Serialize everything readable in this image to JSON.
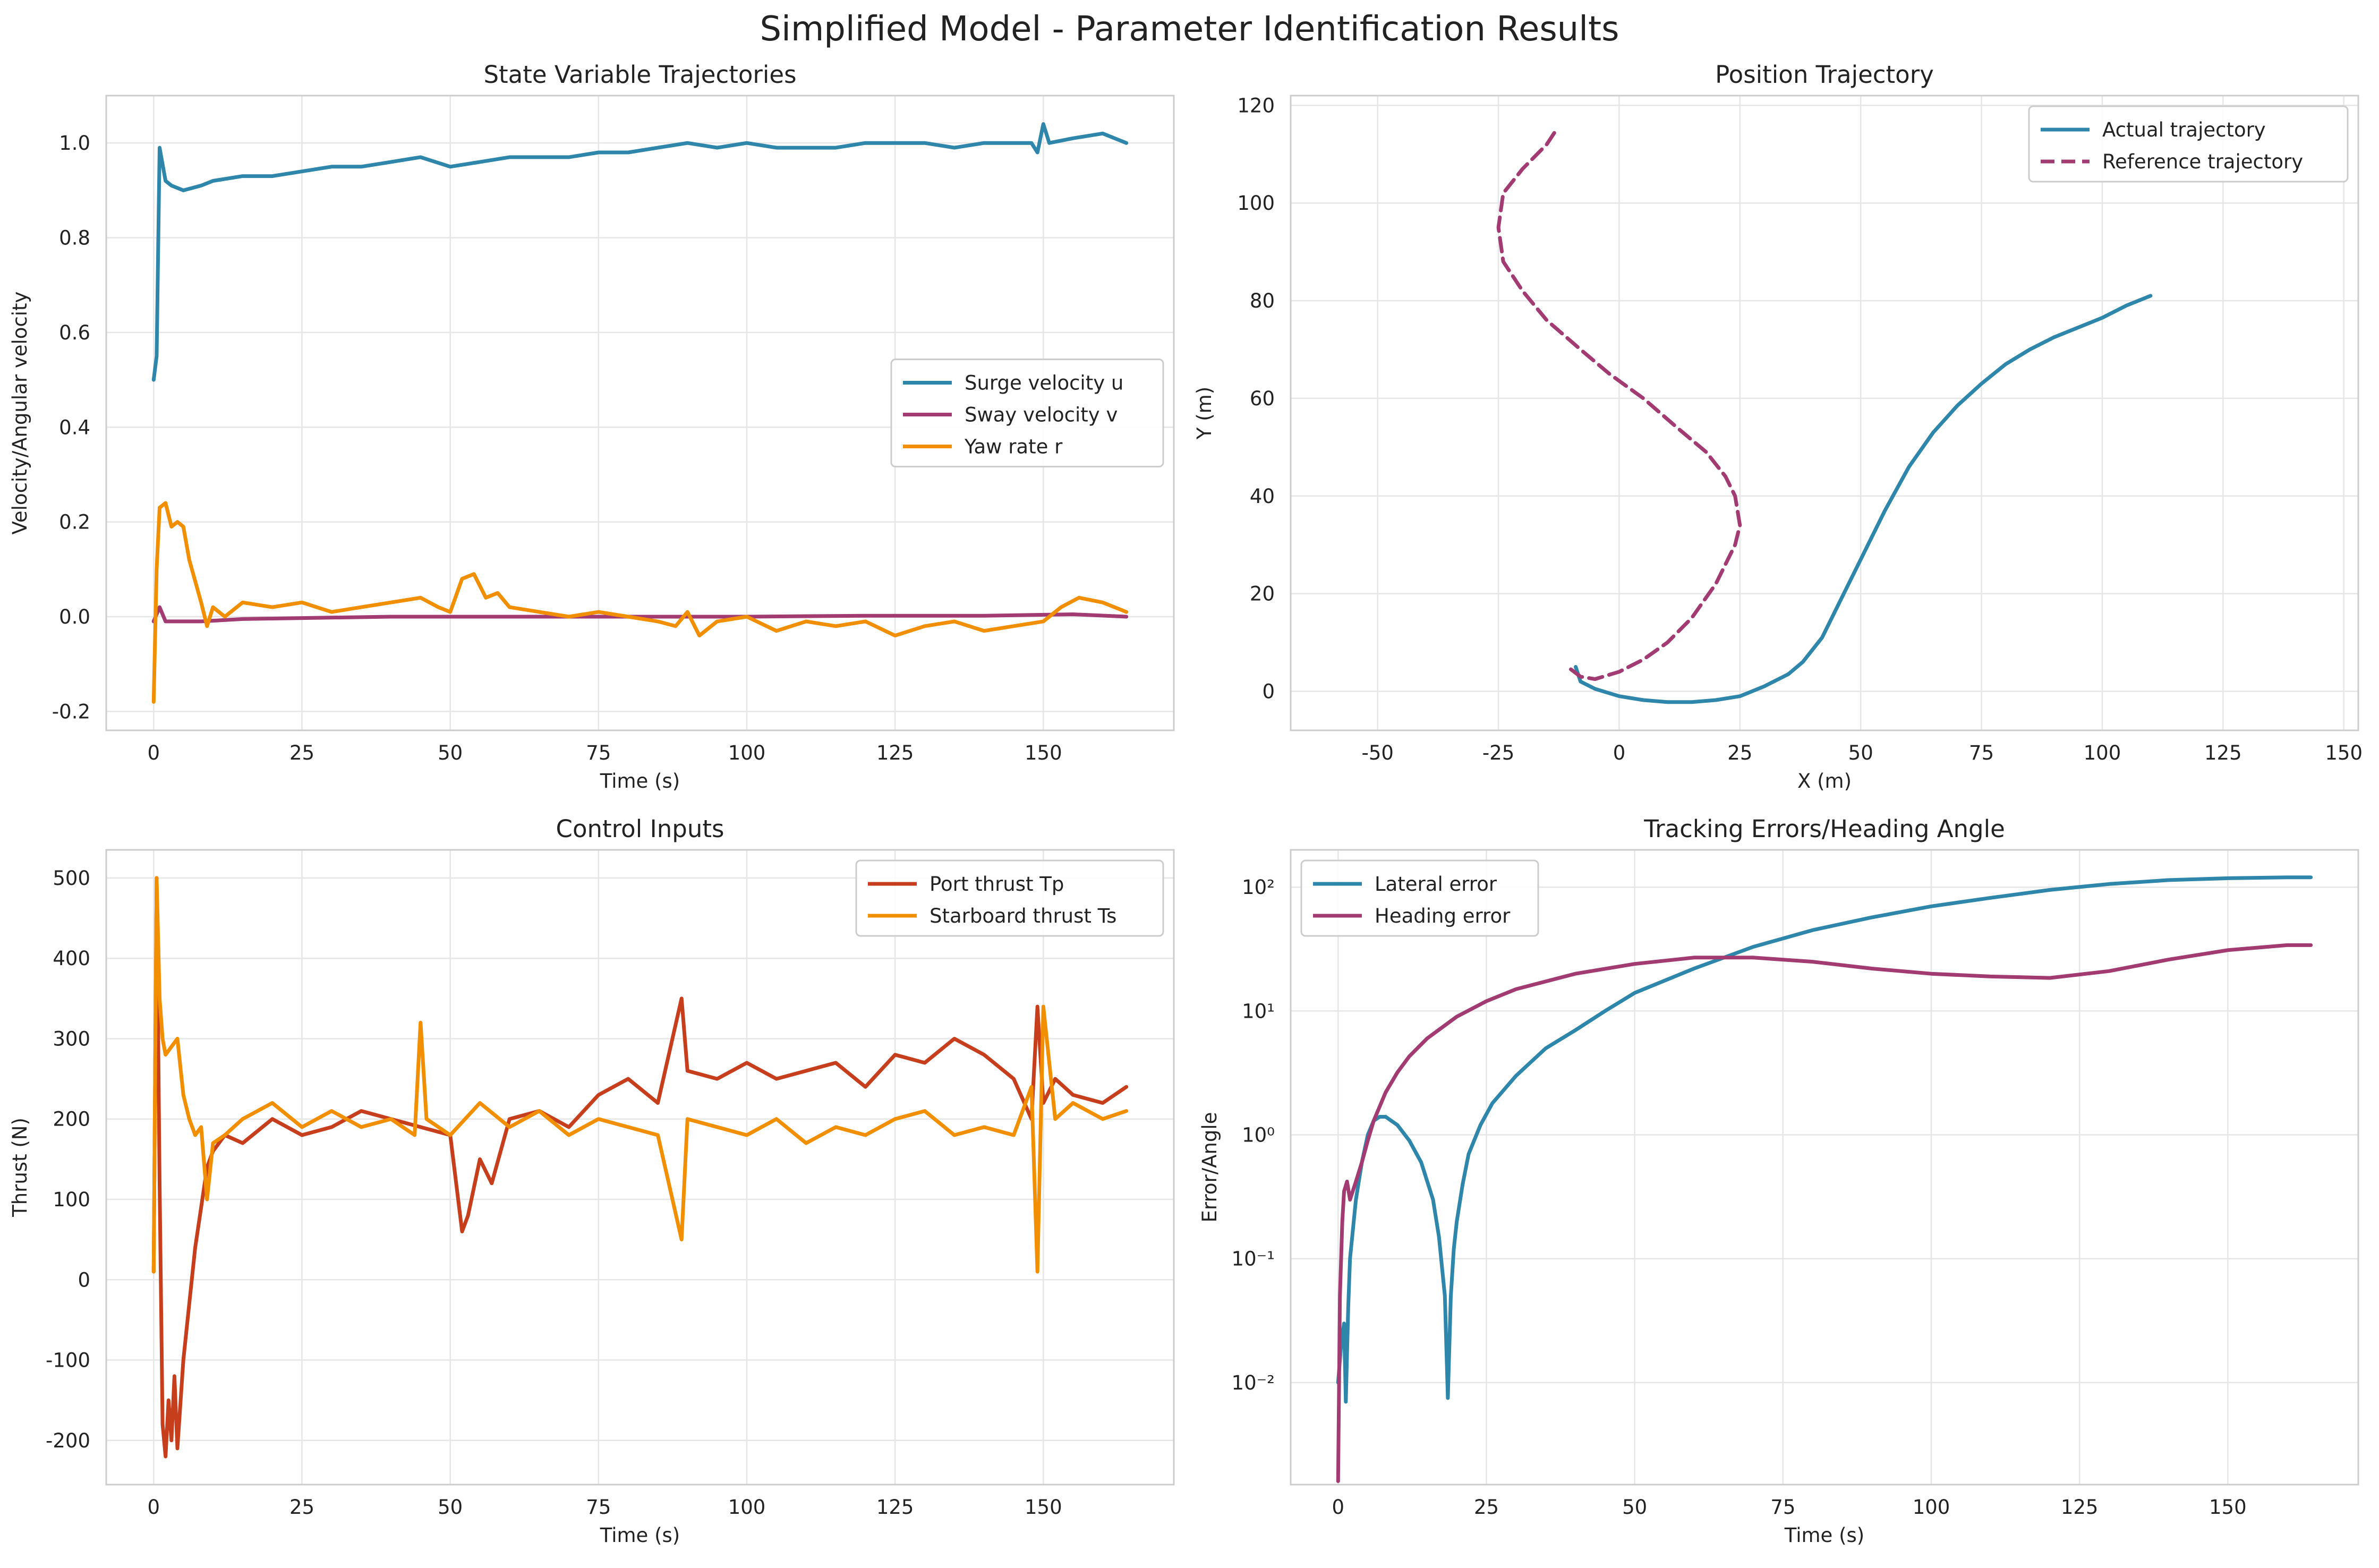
{
  "figure": {
    "suptitle": "Simplified Model - Parameter Identification Results"
  },
  "chart_data": [
    {
      "id": "states",
      "type": "line",
      "title": "State Variable Trajectories",
      "xlabel": "Time (s)",
      "ylabel": "Velocity/Angular velocity",
      "xlim": [
        -8,
        172
      ],
      "ylim": [
        -0.24,
        1.1
      ],
      "xticks": [
        0,
        25,
        50,
        75,
        100,
        125,
        150
      ],
      "yticks": [
        -0.2,
        0.0,
        0.2,
        0.4,
        0.6,
        0.8,
        1.0
      ],
      "ytick_labels": [
        "-0.2",
        "0.0",
        "0.2",
        "0.4",
        "0.6",
        "0.8",
        "1.0"
      ],
      "grid": true,
      "legend": "center-right",
      "series": [
        {
          "name": "Surge velocity u",
          "color": "#2E86AB",
          "x": [
            0,
            0.5,
            1,
            2,
            3,
            5,
            8,
            10,
            15,
            20,
            25,
            30,
            35,
            40,
            45,
            50,
            55,
            60,
            65,
            70,
            75,
            80,
            85,
            90,
            95,
            100,
            105,
            110,
            115,
            120,
            125,
            130,
            135,
            140,
            145,
            148,
            149,
            150,
            151,
            155,
            160,
            164
          ],
          "y": [
            0.5,
            0.55,
            0.99,
            0.92,
            0.91,
            0.9,
            0.91,
            0.92,
            0.93,
            0.93,
            0.94,
            0.95,
            0.95,
            0.96,
            0.97,
            0.95,
            0.96,
            0.97,
            0.97,
            0.97,
            0.98,
            0.98,
            0.99,
            1.0,
            0.99,
            1.0,
            0.99,
            0.99,
            0.99,
            1.0,
            1.0,
            1.0,
            0.99,
            1.0,
            1.0,
            1.0,
            0.98,
            1.04,
            1.0,
            1.01,
            1.02,
            1.0
          ]
        },
        {
          "name": "Sway velocity v",
          "color": "#A23B72",
          "x": [
            0,
            1,
            2,
            4,
            8,
            15,
            25,
            40,
            60,
            80,
            100,
            120,
            140,
            155,
            164
          ],
          "y": [
            -0.01,
            0.02,
            -0.01,
            -0.01,
            -0.01,
            -0.005,
            -0.003,
            0.0,
            0.0,
            0.0,
            0.0,
            0.002,
            0.002,
            0.005,
            0.0
          ]
        },
        {
          "name": "Yaw rate r",
          "color": "#F18F01",
          "x": [
            0,
            0.5,
            1,
            2,
            3,
            4,
            5,
            6,
            8,
            9,
            10,
            12,
            15,
            20,
            25,
            30,
            35,
            40,
            45,
            48,
            50,
            52,
            54,
            56,
            58,
            60,
            65,
            70,
            75,
            80,
            85,
            88,
            90,
            92,
            95,
            100,
            105,
            110,
            115,
            120,
            125,
            130,
            135,
            140,
            145,
            150,
            153,
            156,
            160,
            164
          ],
          "y": [
            -0.18,
            0.1,
            0.23,
            0.24,
            0.19,
            0.2,
            0.19,
            0.12,
            0.03,
            -0.02,
            0.02,
            0.0,
            0.03,
            0.02,
            0.03,
            0.01,
            0.02,
            0.03,
            0.04,
            0.02,
            0.01,
            0.08,
            0.09,
            0.04,
            0.05,
            0.02,
            0.01,
            0.0,
            0.01,
            0.0,
            -0.01,
            -0.02,
            0.01,
            -0.04,
            -0.01,
            0.0,
            -0.03,
            -0.01,
            -0.02,
            -0.01,
            -0.04,
            -0.02,
            -0.01,
            -0.03,
            -0.02,
            -0.01,
            0.02,
            0.04,
            0.03,
            0.01
          ]
        }
      ]
    },
    {
      "id": "position",
      "type": "line",
      "title": "Position Trajectory",
      "xlabel": "X (m)",
      "ylabel": "Y (m)",
      "xlim": [
        -68,
        153
      ],
      "ylim": [
        -8,
        122
      ],
      "xticks": [
        -50,
        -25,
        0,
        25,
        50,
        75,
        100,
        125,
        150
      ],
      "yticks": [
        0,
        20,
        40,
        60,
        80,
        100,
        120
      ],
      "ytick_labels": [
        "0",
        "20",
        "40",
        "60",
        "80",
        "100",
        "120"
      ],
      "grid": true,
      "legend": "top-right",
      "series": [
        {
          "name": "Actual trajectory",
          "color": "#2E86AB",
          "dash": false,
          "x": [
            -9,
            -8,
            -5,
            0,
            5,
            10,
            15,
            20,
            25,
            30,
            35,
            38,
            42,
            45,
            50,
            55,
            60,
            65,
            70,
            75,
            80,
            85,
            90,
            95,
            100,
            105,
            110
          ],
          "y": [
            5,
            2,
            0.5,
            -1,
            -1.8,
            -2.2,
            -2.2,
            -1.8,
            -1,
            1,
            3.5,
            6,
            11,
            17,
            27,
            37,
            46,
            53,
            58.5,
            63,
            67,
            70,
            72.5,
            74.5,
            76.5,
            79,
            81
          ]
        },
        {
          "name": "Reference trajectory",
          "color": "#A23B72",
          "dash": true,
          "x": [
            -10,
            -8,
            -5,
            0,
            5,
            10,
            15,
            20,
            24,
            25,
            24,
            22,
            18,
            12,
            5,
            -2,
            -8,
            -15,
            -20,
            -24,
            -25,
            -24,
            -20,
            -15,
            -13
          ],
          "y": [
            4.5,
            3,
            2.5,
            4,
            6.5,
            10,
            15,
            22,
            30,
            34,
            40,
            44,
            49,
            54,
            60,
            65,
            70,
            76,
            82,
            88,
            95,
            102,
            107,
            112,
            115
          ]
        }
      ]
    },
    {
      "id": "controls",
      "type": "line",
      "title": "Control Inputs",
      "xlabel": "Time (s)",
      "ylabel": "Thrust (N)",
      "xlim": [
        -8,
        172
      ],
      "ylim": [
        -255,
        535
      ],
      "xticks": [
        0,
        25,
        50,
        75,
        100,
        125,
        150
      ],
      "yticks": [
        -200,
        -100,
        0,
        100,
        200,
        300,
        400,
        500
      ],
      "ytick_labels": [
        "-200",
        "-100",
        "0",
        "100",
        "200",
        "300",
        "400",
        "500"
      ],
      "grid": true,
      "legend": "top-right",
      "series": [
        {
          "name": "Port thrust Tp",
          "color": "#C73E1D",
          "x": [
            0,
            0.5,
            1,
            1.5,
            2,
            2.5,
            3,
            3.5,
            4,
            5,
            6,
            7,
            8,
            9,
            10,
            12,
            15,
            20,
            25,
            30,
            35,
            40,
            45,
            50,
            52,
            53,
            55,
            57,
            60,
            65,
            70,
            75,
            80,
            85,
            89,
            90,
            95,
            100,
            105,
            110,
            115,
            120,
            125,
            130,
            135,
            140,
            145,
            148,
            149,
            150,
            152,
            155,
            160,
            164
          ],
          "y": [
            10,
            500,
            120,
            -180,
            -220,
            -150,
            -200,
            -120,
            -210,
            -100,
            -30,
            40,
            90,
            140,
            160,
            180,
            170,
            200,
            180,
            190,
            210,
            200,
            190,
            180,
            60,
            80,
            150,
            120,
            200,
            210,
            190,
            230,
            250,
            220,
            350,
            260,
            250,
            270,
            250,
            260,
            270,
            240,
            280,
            270,
            300,
            280,
            250,
            200,
            340,
            220,
            250,
            230,
            220,
            240
          ]
        },
        {
          "name": "Starboard thrust Ts",
          "color": "#F18F01",
          "x": [
            0,
            0.5,
            1,
            1.5,
            2,
            3,
            4,
            5,
            6,
            7,
            8,
            9,
            10,
            12,
            15,
            20,
            25,
            30,
            35,
            40,
            44,
            45,
            46,
            50,
            55,
            60,
            65,
            70,
            75,
            80,
            85,
            89,
            90,
            95,
            100,
            105,
            110,
            115,
            120,
            125,
            130,
            135,
            140,
            145,
            148,
            149,
            150,
            152,
            155,
            160,
            164
          ],
          "y": [
            10,
            500,
            350,
            300,
            280,
            290,
            300,
            230,
            200,
            180,
            190,
            100,
            170,
            180,
            200,
            220,
            190,
            210,
            190,
            200,
            180,
            320,
            200,
            180,
            220,
            190,
            210,
            180,
            200,
            190,
            180,
            50,
            200,
            190,
            180,
            200,
            170,
            190,
            180,
            200,
            210,
            180,
            190,
            180,
            240,
            10,
            340,
            200,
            220,
            200,
            210
          ]
        }
      ]
    },
    {
      "id": "errors",
      "type": "line",
      "title": "Tracking Errors/Heading Angle",
      "xlabel": "Time (s)",
      "ylabel": "Error/Angle",
      "xlim": [
        -8,
        172
      ],
      "ylog": true,
      "ylim": [
        0.0015,
        200
      ],
      "xticks": [
        0,
        25,
        50,
        75,
        100,
        125,
        150
      ],
      "yticks": [
        0.01,
        0.1,
        1,
        10,
        100
      ],
      "ytick_labels": [
        "10⁻²",
        "10⁻¹",
        "10⁰",
        "10¹",
        "10²"
      ],
      "grid": true,
      "legend": "top-left",
      "series": [
        {
          "name": "Lateral error",
          "color": "#2E86AB",
          "x": [
            0,
            0.5,
            1,
            1.3,
            1.7,
            2,
            3,
            4,
            5,
            6,
            7,
            8,
            10,
            12,
            14,
            16,
            17,
            18,
            18.5,
            19,
            19.5,
            20,
            21,
            22,
            24,
            26,
            30,
            35,
            40,
            45,
            50,
            60,
            70,
            80,
            90,
            100,
            110,
            120,
            130,
            140,
            150,
            160,
            164
          ],
          "y": [
            0.01,
            0.02,
            0.03,
            0.007,
            0.04,
            0.1,
            0.3,
            0.6,
            1.0,
            1.3,
            1.4,
            1.4,
            1.2,
            0.9,
            0.6,
            0.3,
            0.15,
            0.05,
            0.0075,
            0.05,
            0.12,
            0.2,
            0.4,
            0.7,
            1.2,
            1.8,
            3,
            5,
            7,
            10,
            14,
            22,
            33,
            45,
            57,
            70,
            82,
            95,
            106,
            114,
            118,
            120,
            120
          ]
        },
        {
          "name": "Heading error",
          "color": "#A23B72",
          "x": [
            0,
            0.3,
            0.7,
            1,
            1.5,
            2,
            3,
            4,
            5,
            6,
            8,
            10,
            12,
            15,
            20,
            25,
            30,
            40,
            50,
            60,
            70,
            80,
            90,
            100,
            110,
            120,
            130,
            140,
            150,
            160,
            164
          ],
          "y": [
            0.0016,
            0.05,
            0.2,
            0.35,
            0.42,
            0.3,
            0.42,
            0.6,
            0.9,
            1.3,
            2.2,
            3.2,
            4.3,
            6,
            9,
            12,
            15,
            20,
            24,
            27,
            27,
            25,
            22,
            20,
            19,
            18.5,
            21,
            26,
            31,
            34,
            34
          ]
        }
      ]
    }
  ]
}
